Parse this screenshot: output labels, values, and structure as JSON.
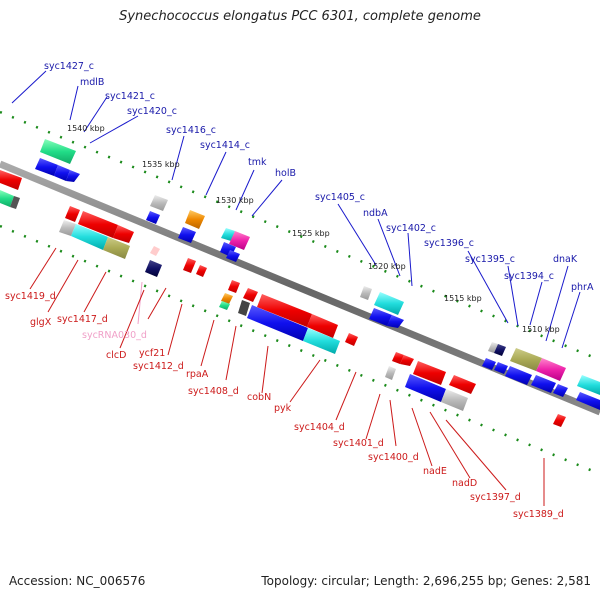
{
  "title": "Synechococcus elongatus PCC 6301, complete genome",
  "footer": {
    "accession": "Accession: NC_006576",
    "topology": "Topology: circular; Length: 2,696,255 bp; Genes: 2,581"
  },
  "colors": {
    "backbone": "#7f7f7f",
    "forward_arrows": "#1a1aee",
    "reverse_arrows": "#ee1a1a",
    "upper_labels": "#1a1aaa",
    "lower_labels": "#cc1a1a",
    "rna_label": "#f0a0c8",
    "tick_marks": "#1a7a1a"
  },
  "kbp_marks": [
    "1540 kbp",
    "1535 kbp",
    "1530 kbp",
    "1525 kbp",
    "1520 kbp",
    "1515 kbp",
    "1510 kbp"
  ],
  "upper_gene_labels": [
    "syc1427_c",
    "mdlB",
    "syc1421_c",
    "syc1420_c",
    "syc1416_c",
    "syc1414_c",
    "tmk",
    "holB",
    "syc1405_c",
    "ndbA",
    "syc1402_c",
    "syc1396_c",
    "syc1395_c",
    "syc1394_c",
    "dnaK",
    "phrA"
  ],
  "lower_gene_labels": [
    "syc1419_d",
    "glgX",
    "syc1417_d",
    "sycRNA030_d",
    "clcD",
    "ycf21",
    "syc1412_d",
    "rpaA",
    "syc1408_d",
    "cobN",
    "pyk",
    "syc1404_d",
    "syc1401_d",
    "syc1400_d",
    "nadE",
    "nadD",
    "syc1397_d",
    "syc1389_d"
  ]
}
